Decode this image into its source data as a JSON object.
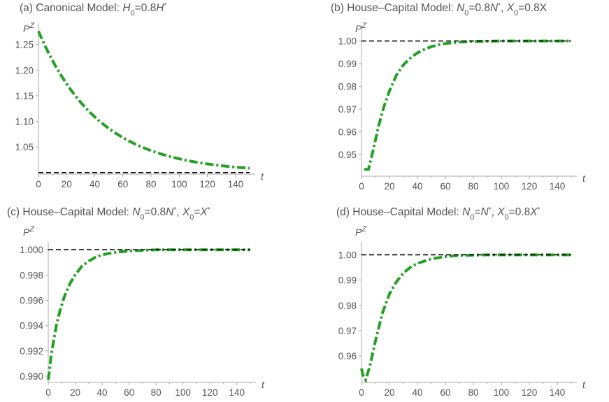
{
  "figure": {
    "background": "#ffffff",
    "text_color": "#555555",
    "axis_color": "#aaaaaa"
  },
  "chart_data": [
    {
      "type": "line",
      "title_prefix": "(a) Canonical Model: ",
      "title": "(a) Canonical Model: H0=0.8H*",
      "xlabel": "t",
      "ylabel": "PZ",
      "xlim": [
        0,
        150
      ],
      "ylim": [
        0.997,
        1.285
      ],
      "xticks": [
        0,
        20,
        40,
        60,
        80,
        100,
        120,
        140
      ],
      "yticks": [
        1.05,
        1.1,
        1.15,
        1.2,
        1.25
      ],
      "ytick_labels": [
        "1.05",
        "1.10",
        "1.15",
        "1.20",
        "1.25"
      ],
      "grid": false,
      "series": [
        {
          "style": "dash-dot",
          "color": "#22a122",
          "start": 1.276,
          "end": 1.0,
          "rate": 0.0233,
          "t_start": 0,
          "t_end": 150
        },
        {
          "style": "dashed",
          "color": "#000000",
          "value": 1.0,
          "t_start": 0,
          "t_end": 150
        }
      ]
    },
    {
      "type": "line",
      "title_prefix": "(b) House–Capital Model: ",
      "title": "(b) House–Capital Model: N0=0.8N*, X0=0.8X",
      "xlabel": "t",
      "ylabel": "PZ",
      "xlim": [
        0,
        150
      ],
      "ylim": [
        0.9405,
        1.0045
      ],
      "xticks": [
        0,
        20,
        40,
        60,
        80,
        100,
        120,
        140
      ],
      "yticks": [
        0.95,
        0.96,
        0.97,
        0.98,
        0.99,
        1.0
      ],
      "ytick_labels": [
        "0.95",
        "0.96",
        "0.97",
        "0.98",
        "0.99",
        "1.00"
      ],
      "grid": false,
      "series": [
        {
          "style": "dash-dot",
          "color": "#22a122",
          "points": [
            [
              2,
              0.9435
            ],
            [
              5,
              0.9435
            ],
            [
              8,
              0.951
            ],
            [
              12,
              0.962
            ],
            [
              16,
              0.971
            ],
            [
              20,
              0.978
            ],
            [
              25,
              0.985
            ],
            [
              30,
              0.9895
            ],
            [
              35,
              0.9925
            ],
            [
              40,
              0.9948
            ],
            [
              45,
              0.9963
            ],
            [
              50,
              0.9975
            ],
            [
              55,
              0.9983
            ],
            [
              60,
              0.9989
            ],
            [
              70,
              0.9995
            ],
            [
              80,
              0.9998
            ],
            [
              100,
              1.0
            ],
            [
              150,
              1.0
            ]
          ]
        },
        {
          "style": "dashed",
          "color": "#000000",
          "value": 1.0,
          "t_start": 0,
          "t_end": 150
        }
      ]
    },
    {
      "type": "line",
      "title_prefix": "(c) House–Capital Model: ",
      "title": "(c) House–Capital Model: N0=0.8N*, X0=X*",
      "xlabel": "t",
      "ylabel": "PZ",
      "xlim": [
        0,
        150
      ],
      "ylim": [
        0.9895,
        1.0004
      ],
      "xticks": [
        0,
        20,
        40,
        60,
        80,
        100,
        120,
        140
      ],
      "yticks": [
        0.99,
        0.992,
        0.994,
        0.996,
        0.998,
        1.0
      ],
      "ytick_labels": [
        "0.990",
        "0.992",
        "0.994",
        "0.996",
        "0.998",
        "1.000"
      ],
      "grid": false,
      "series": [
        {
          "style": "dash-dot",
          "color": "#22a122",
          "points": [
            [
              0,
              0.9897
            ],
            [
              1,
              0.9905
            ],
            [
              2,
              0.9915
            ],
            [
              4,
              0.9928
            ],
            [
              6,
              0.994
            ],
            [
              9,
              0.9953
            ],
            [
              12,
              0.9963
            ],
            [
              16,
              0.9973
            ],
            [
              20,
              0.998
            ],
            [
              25,
              0.9987
            ],
            [
              30,
              0.9991
            ],
            [
              35,
              0.9994
            ],
            [
              40,
              0.9996
            ],
            [
              50,
              0.9998
            ],
            [
              60,
              0.9999
            ],
            [
              80,
              1.0
            ],
            [
              150,
              1.0
            ]
          ]
        },
        {
          "style": "dashed",
          "color": "#000000",
          "value": 1.0,
          "t_start": 0,
          "t_end": 150
        }
      ]
    },
    {
      "type": "line",
      "title_prefix": "(d) House–Capital Model: ",
      "title": "(d) House–Capital Model: N0=N*, X0=0.8X*",
      "xlabel": "t",
      "ylabel": "PZ",
      "xlim": [
        0,
        150
      ],
      "ylim": [
        0.9495,
        1.004
      ],
      "xticks": [
        0,
        20,
        40,
        60,
        80,
        100,
        120,
        140
      ],
      "yticks": [
        0.96,
        0.97,
        0.98,
        0.99,
        1.0
      ],
      "ytick_labels": [
        "0.96",
        "0.97",
        "0.98",
        "0.99",
        "1.00"
      ],
      "grid": false,
      "series": [
        {
          "style": "dash-dot",
          "color": "#22a122",
          "points": [
            [
              0,
              0.955
            ],
            [
              1,
              0.9525
            ],
            [
              3,
              0.9505
            ],
            [
              6,
              0.956
            ],
            [
              10,
              0.966
            ],
            [
              15,
              0.977
            ],
            [
              20,
              0.9845
            ],
            [
              25,
              0.9893
            ],
            [
              30,
              0.9928
            ],
            [
              35,
              0.9951
            ],
            [
              40,
              0.9966
            ],
            [
              50,
              0.9984
            ],
            [
              60,
              0.9993
            ],
            [
              70,
              0.9997
            ],
            [
              90,
              1.0
            ],
            [
              150,
              1.0
            ]
          ]
        },
        {
          "style": "dashed",
          "color": "#000000",
          "value": 1.0,
          "t_start": 0,
          "t_end": 150
        }
      ]
    }
  ]
}
